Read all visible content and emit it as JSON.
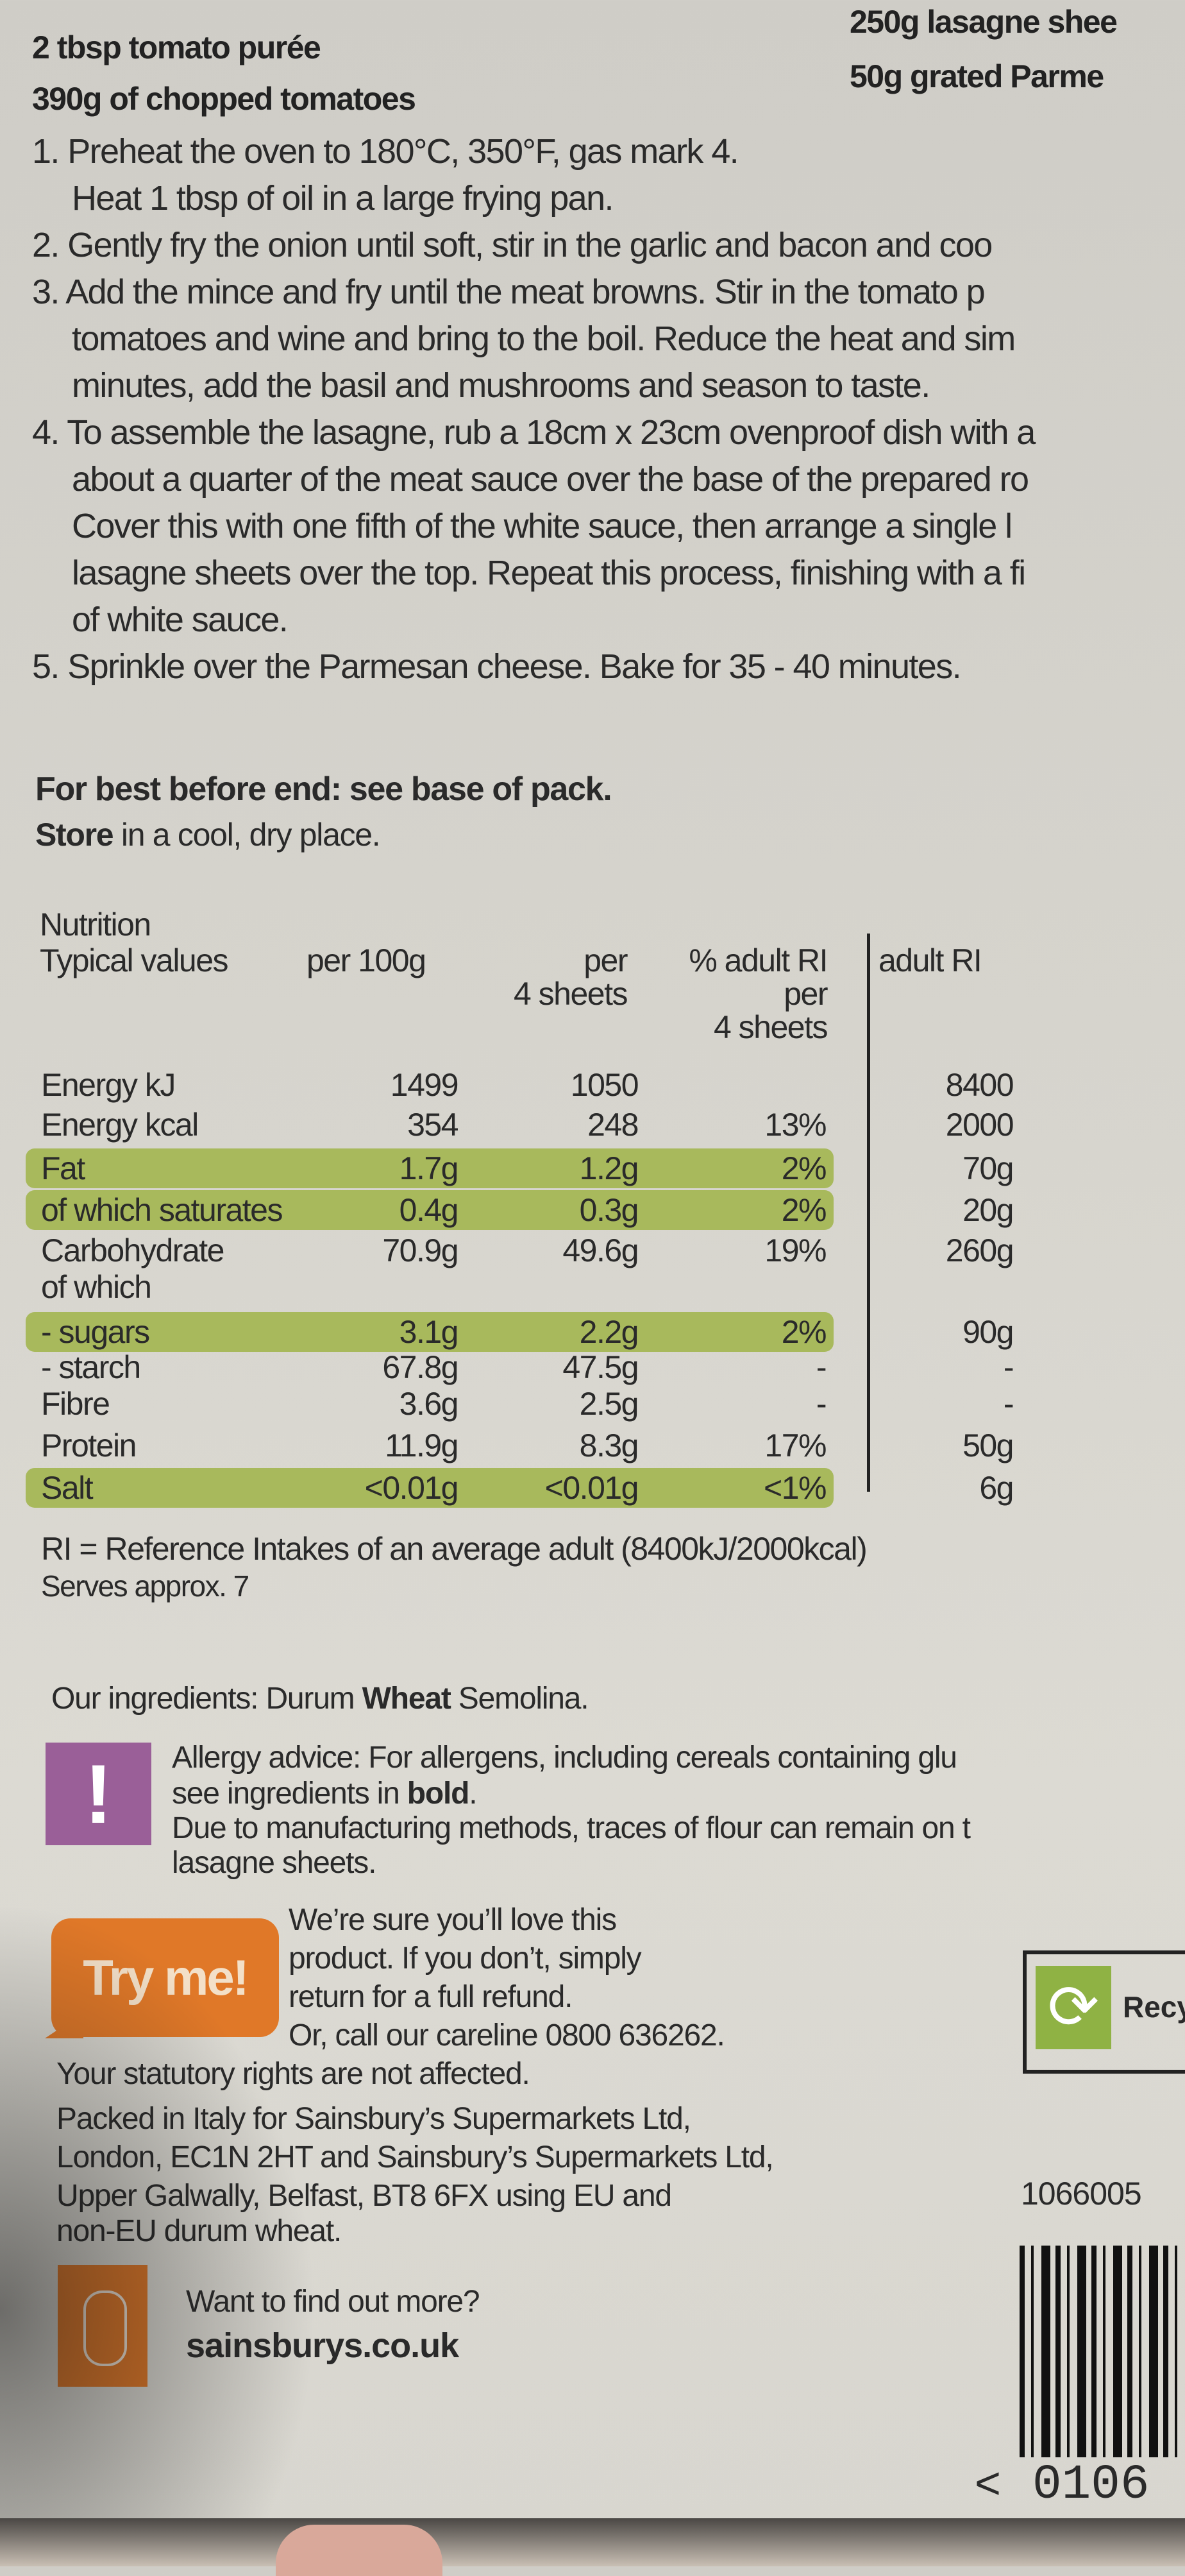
{
  "ingredients_left": [
    "2 tbsp tomato purée",
    "390g of chopped tomatoes"
  ],
  "ingredients_right": [
    "250g lasagne shee",
    "50g grated Parme"
  ],
  "method_lines": [
    {
      "text": "1. Preheat the oven to 180°C, 350°F, gas mark 4.",
      "cont": false
    },
    {
      "text": "Heat 1 tbsp of oil in a large frying pan.",
      "cont": true
    },
    {
      "text": "2. Gently fry the onion until soft, stir in the garlic and bacon and coo",
      "cont": false
    },
    {
      "text": "3. Add the mince and fry until the meat browns. Stir in the tomato p",
      "cont": false
    },
    {
      "text": "tomatoes and wine and bring to the boil. Reduce the heat and sim",
      "cont": true
    },
    {
      "text": "minutes, add the basil and mushrooms and season to taste.",
      "cont": true
    },
    {
      "text": "4. To assemble the lasagne, rub a 18cm x 23cm ovenproof dish with a",
      "cont": false
    },
    {
      "text": "about a quarter of the meat sauce over the base of the prepared ro",
      "cont": true
    },
    {
      "text": "Cover this with one fifth of the white sauce, then arrange a single l",
      "cont": true
    },
    {
      "text": "lasagne sheets over the top. Repeat this process, finishing with a fi",
      "cont": true
    },
    {
      "text": "of white sauce.",
      "cont": true
    },
    {
      "text": "5. Sprinkle over the Parmesan cheese. Bake for 35 - 40 minutes.",
      "cont": false
    }
  ],
  "storage": {
    "best_before": "For best before end: see base of pack.",
    "store_bold": "Store",
    "store_rest": " in a cool, dry place."
  },
  "nutrition": {
    "title": "Nutrition",
    "headers": {
      "typical": "Typical values",
      "per100": "per 100g",
      "per4_a": "per",
      "per4_b": "4 sheets",
      "ri_a": "% adult RI",
      "ri_b": "per",
      "ri_c": "4 sheets",
      "adult_ri": "adult RI"
    },
    "rows": [
      {
        "label": "Energy kJ",
        "per100": "1499",
        "per4": "1050",
        "ri_pct": "",
        "adult_ri": "8400",
        "highlight": false
      },
      {
        "label": "Energy kcal",
        "per100": "354",
        "per4": "248",
        "ri_pct": "13%",
        "adult_ri": "2000",
        "highlight": false
      },
      {
        "label": "Fat",
        "per100": "1.7g",
        "per4": "1.2g",
        "ri_pct": "2%",
        "adult_ri": "70g",
        "highlight": true
      },
      {
        "label": "of which saturates",
        "per100": "0.4g",
        "per4": "0.3g",
        "ri_pct": "2%",
        "adult_ri": "20g",
        "highlight": true
      },
      {
        "label": "Carbohydrate",
        "per100": "70.9g",
        "per4": "49.6g",
        "ri_pct": "19%",
        "adult_ri": "260g",
        "highlight": false
      },
      {
        "label": "of which",
        "per100": "",
        "per4": "",
        "ri_pct": "",
        "adult_ri": "",
        "highlight": false
      },
      {
        "label": "- sugars",
        "per100": "3.1g",
        "per4": "2.2g",
        "ri_pct": "2%",
        "adult_ri": "90g",
        "highlight": true
      },
      {
        "label": "- starch",
        "per100": "67.8g",
        "per4": "47.5g",
        "ri_pct": "-",
        "adult_ri": "-",
        "highlight": false
      },
      {
        "label": "Fibre",
        "per100": "3.6g",
        "per4": "2.5g",
        "ri_pct": "-",
        "adult_ri": "-",
        "highlight": false
      },
      {
        "label": "Protein",
        "per100": "11.9g",
        "per4": "8.3g",
        "ri_pct": "17%",
        "adult_ri": "50g",
        "highlight": false
      },
      {
        "label": "Salt",
        "per100": "<0.01g",
        "per4": "<0.01g",
        "ri_pct": "<1%",
        "adult_ri": "6g",
        "highlight": true
      }
    ],
    "ri_note": "RI = Reference Intakes of an average adult (8400kJ/2000kcal)",
    "serves": "Serves approx. 7"
  },
  "our_ingredients": {
    "prefix": "Our ingredients: Durum ",
    "bold": "Wheat",
    "suffix": " Semolina."
  },
  "allergy": {
    "icon": "!",
    "line1": "Allergy advice: For allergens, including cereals containing glu",
    "line2_prefix": "see ingredients in ",
    "line2_bold": "bold",
    "line2_suffix": ".",
    "line3": "Due to manufacturing methods, traces of flour can remain on t",
    "line4": "lasagne sheets."
  },
  "try_me": {
    "badge": "Try me!",
    "lines": [
      "We’re sure you’ll love this",
      "product. If you don’t, simply",
      "return for a full refund.",
      "Or, call our careline 0800 636262."
    ],
    "statutory": "Your statutory rights are not affected."
  },
  "packed": [
    "Packed in Italy for Sainsbury’s Supermarkets Ltd,",
    "London, EC1N 2HT and Sainsbury’s Supermarkets Ltd,",
    "Upper Galwally, Belfast, BT8 6FX using EU and",
    "non-EU durum wheat."
  ],
  "website": {
    "prompt": "Want to find out more?",
    "url": "sainsburys.co.uk"
  },
  "recycle": {
    "label": "Recy"
  },
  "product_code": "1066005",
  "barcode_digits": "0106",
  "barcode_arrow": "<",
  "colors": {
    "highlight": "#a8b95c",
    "allergy": "#9a5f98",
    "orange": "#e07828",
    "recycle": "#8fb244"
  }
}
